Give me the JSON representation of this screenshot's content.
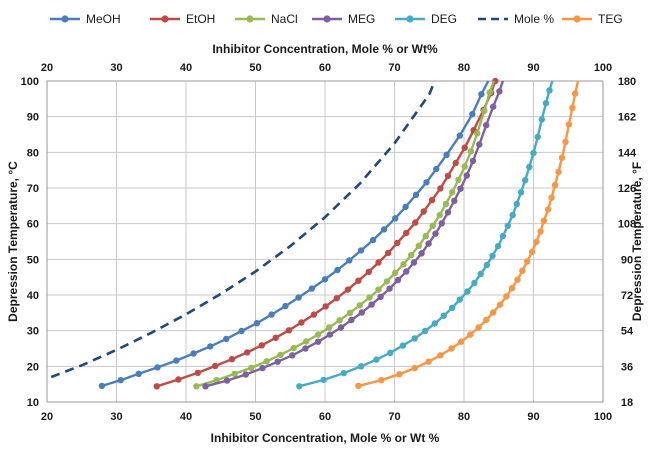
{
  "chart_data": {
    "type": "line",
    "x_bottom_label": "Inhibitor Concentration, Mole % or Wt %",
    "x_top_label": "Inhibitor Concentration, Mole % or Wt%",
    "y_left_label": "Depression Temperature, °C",
    "y_right_label": "Depression Temperature, °F",
    "xlim": [
      20,
      100
    ],
    "ylim": [
      10,
      100
    ],
    "y2lim": [
      18,
      180
    ],
    "x_ticks": [
      "20",
      "30",
      "40",
      "50",
      "60",
      "70",
      "80",
      "90",
      "100"
    ],
    "y_ticks": [
      "10",
      "20",
      "30",
      "40",
      "50",
      "60",
      "70",
      "80",
      "90",
      "100"
    ],
    "y2_ticks": [
      "18",
      "36",
      "54",
      "72",
      "90",
      "108",
      "126",
      "144",
      "162",
      "180"
    ],
    "grid": "vertical and horizontal major gridlines",
    "legend_position": "top",
    "series": [
      {
        "name": "MeOH",
        "color": "#4a7ebb",
        "style": "solid-markers",
        "points": [
          [
            27.9,
            14.5
          ],
          [
            30.6,
            16.1
          ],
          [
            33.2,
            17.9
          ],
          [
            35.9,
            19.7
          ],
          [
            38.6,
            21.6
          ],
          [
            41.1,
            23.6
          ],
          [
            43.5,
            25.6
          ],
          [
            45.8,
            27.7
          ],
          [
            48.0,
            29.9
          ],
          [
            50.2,
            32.1
          ],
          [
            52.3,
            34.5
          ],
          [
            54.3,
            36.9
          ],
          [
            56.2,
            39.3
          ],
          [
            58.1,
            41.8
          ],
          [
            60.0,
            44.4
          ],
          [
            61.8,
            47.0
          ],
          [
            63.5,
            49.7
          ],
          [
            65.2,
            52.5
          ],
          [
            66.9,
            55.4
          ],
          [
            68.5,
            58.4
          ],
          [
            70.1,
            61.5
          ],
          [
            71.6,
            64.7
          ],
          [
            73.1,
            68.1
          ],
          [
            74.6,
            71.6
          ],
          [
            76.0,
            75.3
          ],
          [
            77.5,
            79.3
          ],
          [
            79.4,
            84.7
          ],
          [
            81.2,
            90.7
          ],
          [
            82.5,
            96.3
          ],
          [
            83.5,
            100.5
          ]
        ]
      },
      {
        "name": "EtOH",
        "color": "#be4b48",
        "style": "solid-markers",
        "points": [
          [
            35.8,
            14.4
          ],
          [
            38.9,
            16.3
          ],
          [
            41.7,
            18.2
          ],
          [
            44.2,
            20.1
          ],
          [
            46.6,
            22.0
          ],
          [
            48.8,
            23.9
          ],
          [
            50.9,
            25.9
          ],
          [
            52.9,
            28.0
          ],
          [
            54.8,
            30.1
          ],
          [
            56.6,
            32.3
          ],
          [
            58.4,
            34.5
          ],
          [
            60.1,
            36.8
          ],
          [
            61.7,
            39.1
          ],
          [
            63.3,
            41.5
          ],
          [
            64.8,
            44.0
          ],
          [
            66.3,
            46.5
          ],
          [
            67.7,
            49.1
          ],
          [
            69.1,
            51.8
          ],
          [
            70.4,
            54.6
          ],
          [
            71.7,
            57.4
          ],
          [
            73.0,
            60.3
          ],
          [
            74.2,
            63.4
          ],
          [
            75.4,
            66.6
          ],
          [
            76.6,
            69.9
          ],
          [
            77.7,
            73.4
          ],
          [
            78.8,
            77.0
          ],
          [
            80.1,
            81.3
          ],
          [
            81.4,
            86.2
          ],
          [
            82.8,
            91.9
          ],
          [
            83.9,
            96.6
          ],
          [
            84.5,
            100.0
          ]
        ]
      },
      {
        "name": "NaCl",
        "color": "#98b954",
        "style": "solid-markers",
        "points": [
          [
            41.5,
            14.4
          ],
          [
            44.4,
            16.1
          ],
          [
            47.0,
            17.9
          ],
          [
            49.4,
            19.6
          ],
          [
            51.6,
            21.4
          ],
          [
            53.6,
            23.2
          ],
          [
            55.5,
            25.1
          ],
          [
            57.3,
            27.0
          ],
          [
            59.0,
            28.9
          ],
          [
            60.6,
            30.9
          ],
          [
            62.1,
            32.9
          ],
          [
            63.6,
            35.0
          ],
          [
            65.0,
            37.1
          ],
          [
            66.4,
            39.3
          ],
          [
            67.7,
            41.5
          ],
          [
            68.9,
            43.8
          ],
          [
            70.1,
            46.2
          ],
          [
            71.3,
            48.6
          ],
          [
            72.4,
            51.2
          ],
          [
            73.5,
            53.8
          ],
          [
            74.5,
            56.5
          ],
          [
            75.5,
            59.4
          ],
          [
            76.5,
            62.4
          ],
          [
            77.4,
            65.5
          ],
          [
            78.3,
            68.8
          ],
          [
            79.2,
            72.3
          ],
          [
            80.1,
            76.0
          ],
          [
            81.0,
            80.3
          ],
          [
            81.9,
            85.3
          ],
          [
            82.9,
            91.6
          ],
          [
            83.7,
            96.8
          ],
          [
            84.3,
            100.5
          ]
        ]
      },
      {
        "name": "MEG",
        "color": "#7d60a0",
        "style": "solid-markers",
        "points": [
          [
            42.8,
            14.4
          ],
          [
            45.9,
            16.0
          ],
          [
            48.6,
            17.7
          ],
          [
            51.0,
            19.5
          ],
          [
            53.2,
            21.3
          ],
          [
            55.3,
            23.1
          ],
          [
            57.2,
            25.0
          ],
          [
            59.0,
            26.9
          ],
          [
            60.7,
            28.9
          ],
          [
            62.3,
            30.9
          ],
          [
            63.8,
            33.0
          ],
          [
            65.3,
            35.1
          ],
          [
            66.7,
            37.3
          ],
          [
            68.0,
            39.5
          ],
          [
            69.3,
            41.8
          ],
          [
            70.5,
            44.2
          ],
          [
            71.7,
            46.6
          ],
          [
            72.8,
            49.1
          ],
          [
            73.9,
            51.7
          ],
          [
            74.9,
            54.4
          ],
          [
            75.9,
            57.2
          ],
          [
            76.8,
            60.1
          ],
          [
            77.7,
            63.2
          ],
          [
            78.6,
            66.4
          ],
          [
            79.5,
            69.8
          ],
          [
            80.4,
            73.5
          ],
          [
            81.3,
            77.6
          ],
          [
            82.2,
            82.2
          ],
          [
            83.2,
            87.6
          ],
          [
            84.2,
            92.8
          ],
          [
            85.1,
            97.1
          ],
          [
            85.6,
            100.5
          ]
        ]
      },
      {
        "name": "DEG",
        "color": "#46aac5",
        "style": "solid-markers",
        "points": [
          [
            56.3,
            14.4
          ],
          [
            59.8,
            16.2
          ],
          [
            62.7,
            18.1
          ],
          [
            65.2,
            20.0
          ],
          [
            67.4,
            21.9
          ],
          [
            69.4,
            23.8
          ],
          [
            71.2,
            25.8
          ],
          [
            72.9,
            27.8
          ],
          [
            74.4,
            29.9
          ],
          [
            75.8,
            32.0
          ],
          [
            77.1,
            34.2
          ],
          [
            78.3,
            36.4
          ],
          [
            79.4,
            38.7
          ],
          [
            80.5,
            41.0
          ],
          [
            81.5,
            43.4
          ],
          [
            82.4,
            45.9
          ],
          [
            83.3,
            48.4
          ],
          [
            84.1,
            51.0
          ],
          [
            84.9,
            53.7
          ],
          [
            85.6,
            56.5
          ],
          [
            86.3,
            59.4
          ],
          [
            87.0,
            62.4
          ],
          [
            87.6,
            65.5
          ],
          [
            88.2,
            68.8
          ],
          [
            88.8,
            72.2
          ],
          [
            89.4,
            75.9
          ],
          [
            90.0,
            79.8
          ],
          [
            90.6,
            84.3
          ],
          [
            91.2,
            89.2
          ],
          [
            91.8,
            93.8
          ],
          [
            92.3,
            97.4
          ],
          [
            92.7,
            100.5
          ]
        ]
      },
      {
        "name": "Mole %",
        "color": "#1f497d",
        "style": "dashed",
        "points": [
          [
            20.6,
            17.0
          ],
          [
            25.0,
            20.3
          ],
          [
            30.0,
            24.6
          ],
          [
            35.0,
            29.4
          ],
          [
            40.0,
            34.6
          ],
          [
            45.0,
            40.3
          ],
          [
            50.0,
            46.6
          ],
          [
            55.0,
            53.7
          ],
          [
            60.0,
            61.8
          ],
          [
            65.0,
            71.2
          ],
          [
            70.0,
            82.5
          ],
          [
            75.0,
            96.3
          ],
          [
            75.8,
            100.0
          ]
        ]
      },
      {
        "name": "TEG",
        "color": "#f79646",
        "style": "solid-markers",
        "points": [
          [
            64.8,
            14.5
          ],
          [
            68.1,
            16.1
          ],
          [
            70.7,
            17.8
          ],
          [
            72.9,
            19.5
          ],
          [
            74.9,
            21.3
          ],
          [
            76.6,
            23.1
          ],
          [
            78.2,
            25.0
          ],
          [
            79.6,
            26.9
          ],
          [
            80.9,
            28.9
          ],
          [
            82.1,
            30.9
          ],
          [
            83.2,
            33.0
          ],
          [
            84.2,
            35.1
          ],
          [
            85.2,
            37.3
          ],
          [
            86.1,
            39.6
          ],
          [
            86.9,
            41.9
          ],
          [
            87.7,
            44.3
          ],
          [
            88.4,
            46.8
          ],
          [
            89.1,
            49.4
          ],
          [
            89.8,
            52.1
          ],
          [
            90.4,
            54.9
          ],
          [
            91.0,
            57.8
          ],
          [
            91.5,
            60.8
          ],
          [
            92.1,
            64.0
          ],
          [
            92.6,
            67.3
          ],
          [
            93.1,
            70.8
          ],
          [
            93.6,
            74.5
          ],
          [
            94.1,
            78.5
          ],
          [
            94.6,
            82.9
          ],
          [
            95.1,
            87.8
          ],
          [
            95.6,
            92.5
          ],
          [
            96.0,
            96.5
          ],
          [
            96.4,
            100.5
          ]
        ]
      }
    ]
  }
}
